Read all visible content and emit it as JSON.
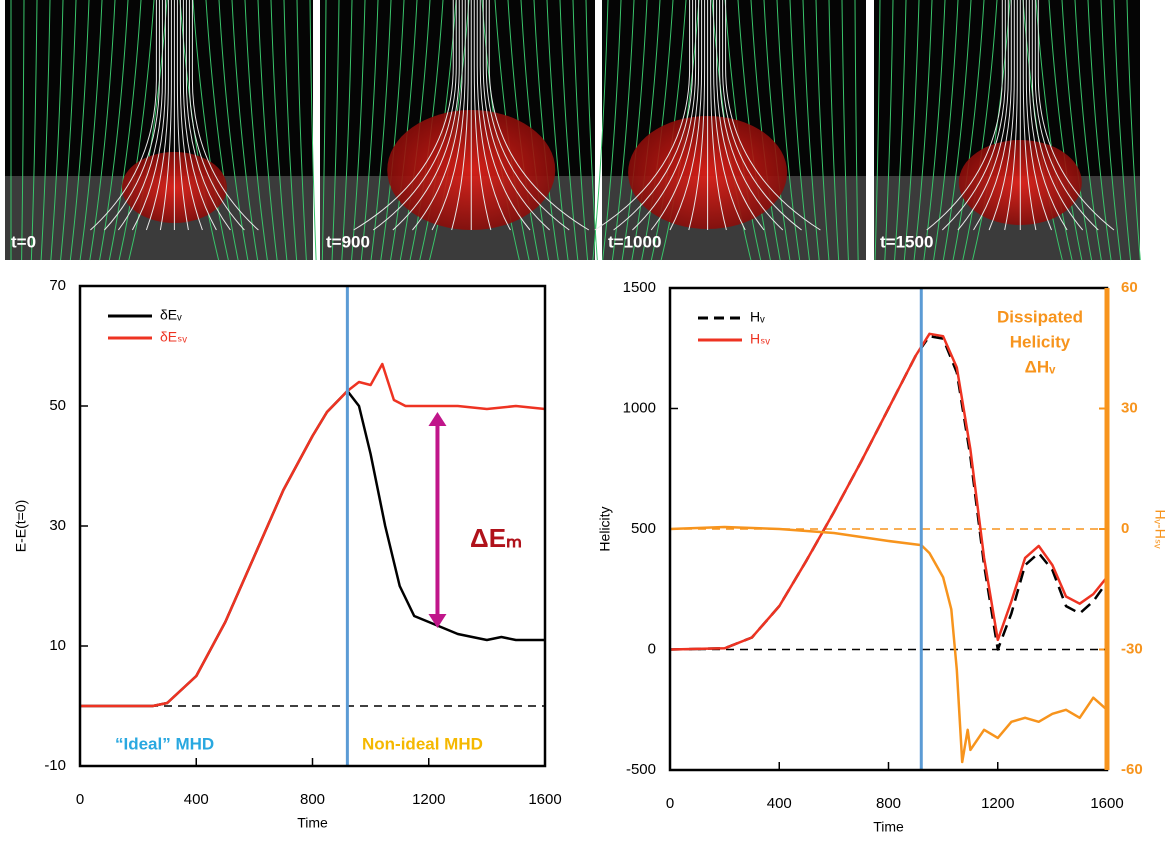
{
  "panels": [
    "t=0",
    "t=900",
    "t=1000",
    "t=1500"
  ],
  "chart_data": [
    {
      "type": "line",
      "xlabel": "Time",
      "ylabel": "E-E(t=0)",
      "xlim": [
        0,
        1600
      ],
      "xticks": [
        0,
        400,
        800,
        1200,
        1600
      ],
      "ylim": [
        -10,
        70
      ],
      "yticks": [
        -10,
        10,
        30,
        50,
        70
      ],
      "series": [
        {
          "name": "δEᵥ",
          "color": "#000000",
          "x": [
            0,
            250,
            300,
            400,
            500,
            600,
            700,
            800,
            850,
            920,
            960,
            1000,
            1050,
            1100,
            1150,
            1200,
            1250,
            1300,
            1350,
            1400,
            1450,
            1500,
            1550,
            1600
          ],
          "values": [
            0,
            0,
            0.5,
            5,
            14,
            25,
            36,
            45,
            49,
            52.5,
            50,
            42,
            30,
            20,
            15,
            14,
            13,
            12,
            11.5,
            11,
            11.5,
            11,
            11,
            11
          ]
        },
        {
          "name": "δEₛᵥ",
          "color": "#ee3322",
          "x": [
            0,
            250,
            300,
            400,
            500,
            600,
            700,
            800,
            850,
            920,
            960,
            1000,
            1040,
            1080,
            1120,
            1200,
            1300,
            1400,
            1500,
            1600
          ],
          "values": [
            0,
            0,
            0.5,
            5,
            14,
            25,
            36,
            45,
            49,
            52.5,
            54,
            53.5,
            57,
            51,
            50,
            50,
            50,
            49.5,
            50,
            49.5
          ]
        }
      ],
      "vline": 920,
      "hlines": [
        {
          "value": 0,
          "axis": "y",
          "color": "#000000"
        }
      ],
      "arrow": {
        "x": 1230,
        "y": [
          13,
          49
        ],
        "color": "#c0168a"
      },
      "annotations": [
        {
          "text": "“Ideal” MHD",
          "color": "#29a8e0"
        },
        {
          "text": "Non-ideal MHD",
          "color": "#f5b800"
        },
        {
          "text": "ΔEₘ",
          "color": "#b0121b"
        }
      ]
    },
    {
      "type": "line",
      "xlabel": "Time",
      "ylabel": "Helicity",
      "y2label": "Hᵥ-Hₛᵥ",
      "y2color": "#f7941d",
      "xlim": [
        0,
        1600
      ],
      "xticks": [
        0,
        400,
        800,
        1200,
        1600
      ],
      "ylim": [
        -500,
        1500
      ],
      "yticks": [
        -500,
        0,
        500,
        1000,
        1500
      ],
      "y2lim": [
        -60,
        60
      ],
      "y2ticks": [
        -60,
        -30,
        0,
        30,
        60
      ],
      "series": [
        {
          "name": "Hᵥ",
          "color": "#000000",
          "dash": true,
          "x": [
            0,
            200,
            300,
            400,
            500,
            600,
            700,
            800,
            900,
            950,
            1000,
            1050,
            1100,
            1150,
            1200,
            1250,
            1300,
            1350,
            1400,
            1450,
            1500,
            1550,
            1600
          ],
          "values": [
            0,
            5,
            50,
            180,
            370,
            570,
            780,
            1000,
            1220,
            1300,
            1290,
            1150,
            800,
            350,
            0,
            150,
            350,
            400,
            330,
            180,
            150,
            200,
            280
          ]
        },
        {
          "name": "Hₛᵥ",
          "color": "#ee3322",
          "x": [
            0,
            200,
            300,
            400,
            500,
            600,
            700,
            800,
            900,
            950,
            1000,
            1050,
            1100,
            1150,
            1200,
            1250,
            1300,
            1350,
            1400,
            1450,
            1500,
            1550,
            1600
          ],
          "values": [
            0,
            5,
            50,
            180,
            370,
            570,
            780,
            1000,
            1220,
            1310,
            1300,
            1170,
            830,
            380,
            40,
            200,
            380,
            430,
            350,
            220,
            190,
            230,
            300
          ]
        },
        {
          "name": "Hᵥ-Hₛᵥ",
          "color": "#f7941d",
          "axis": "y2",
          "legend": false,
          "x": [
            0,
            200,
            400,
            600,
            800,
            920,
            950,
            1000,
            1030,
            1050,
            1070,
            1090,
            1100,
            1150,
            1200,
            1250,
            1300,
            1350,
            1400,
            1450,
            1500,
            1550,
            1600
          ],
          "values": [
            0,
            0.5,
            0,
            -1,
            -3,
            -4,
            -6,
            -12,
            -20,
            -35,
            -58,
            -50,
            -55,
            -50,
            -52,
            -48,
            -47,
            -48,
            -46,
            -45,
            -47,
            -42,
            -45
          ]
        }
      ],
      "vline": 920,
      "hlines": [
        {
          "value": 0,
          "axis": "y",
          "color": "#000000"
        },
        {
          "value": 0,
          "axis": "y2",
          "color": "#f7941d"
        }
      ],
      "annotations": [
        {
          "text": "Dissipated",
          "color": "#f7941d"
        },
        {
          "text": "Helicity",
          "color": "#f7941d"
        },
        {
          "text": "ΔHᵥ",
          "color": "#f7941d"
        }
      ]
    }
  ]
}
